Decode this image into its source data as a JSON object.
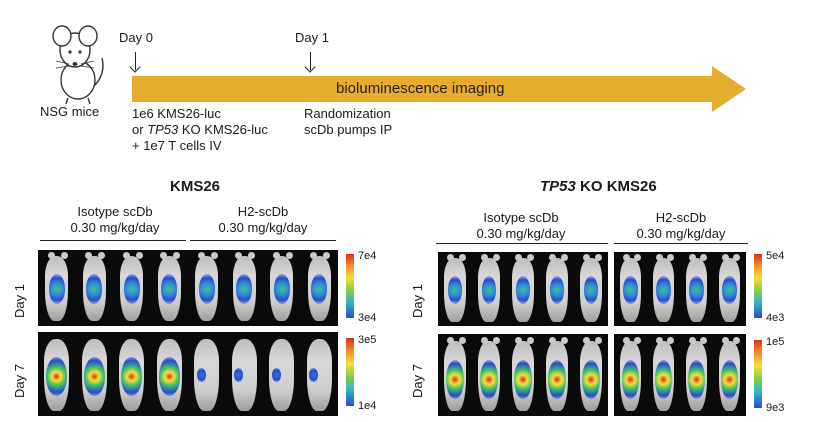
{
  "timeline": {
    "mouse_label": "NSG mice",
    "day0_label": "Day 0",
    "day1_label": "Day 1",
    "arrow_label": "bioluminescence imaging",
    "arrow_color": "#e6ac2e",
    "day0_notes": [
      "1e6 KMS26-luc",
      "or",
      "TP53",
      "KO KMS26-luc",
      "+ 1e7 T cells IV"
    ],
    "day1_notes": [
      "Randomization",
      "scDb pumps IP"
    ]
  },
  "left_panel": {
    "title": "KMS26",
    "groups": [
      {
        "name": "Isotype scDb",
        "dose": "0.30 mg/kg/day"
      },
      {
        "name": "H2-scDb",
        "dose": "0.30 mg/kg/day"
      }
    ],
    "rows": [
      "Day 1",
      "Day 7"
    ],
    "colorbars": [
      {
        "max": "7e4",
        "min": "3e4"
      },
      {
        "max": "3e5",
        "min": "1e4"
      }
    ]
  },
  "right_panel": {
    "title_italic": "TP53",
    "title_rest": "KO KMS26",
    "groups": [
      {
        "name": "Isotype scDb",
        "dose": "0.30 mg/kg/day"
      },
      {
        "name": "H2-scDb",
        "dose": "0.30 mg/kg/day"
      }
    ],
    "rows": [
      "Day 1",
      "Day 7"
    ],
    "colorbars": [
      {
        "max": "5e4",
        "min": "4e3"
      },
      {
        "max": "1e5",
        "min": "9e3"
      }
    ]
  }
}
